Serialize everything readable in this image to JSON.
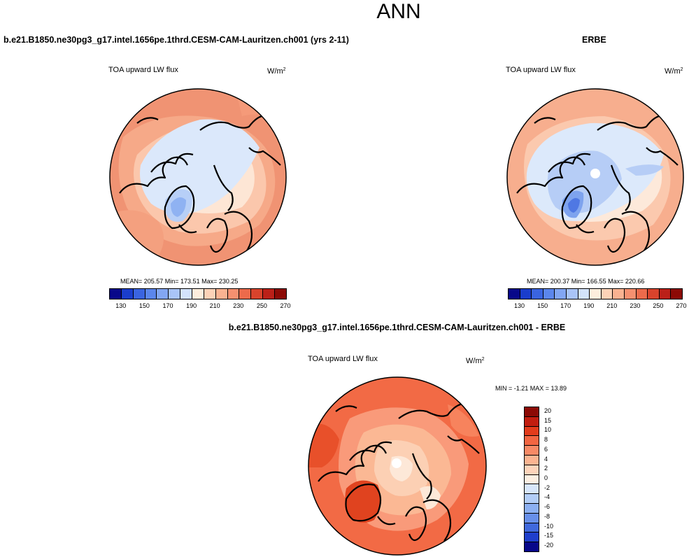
{
  "title": "ANN",
  "panels": {
    "left": {
      "heading": "b.e21.B1850.ne30pg3_g17.intel.1656pe.1thrd.CESM-CAM-Lauritzen.ch001 (yrs 2-11)",
      "variable": "TOA upward LW flux",
      "unit_base": "W/m",
      "unit_exp": "2",
      "stats": "MEAN= 205.57  Min= 173.51  Max= 230.25"
    },
    "right": {
      "heading": "ERBE",
      "variable": "TOA upward LW flux",
      "unit_base": "W/m",
      "unit_exp": "2",
      "stats": "MEAN= 200.37  Min= 166.55  Max= 220.66"
    },
    "diff": {
      "heading": "b.e21.B1850.ne30pg3_g17.intel.1656pe.1thrd.CESM-CAM-Lauritzen.ch001 - ERBE",
      "variable": "TOA upward LW flux",
      "unit_base": "W/m",
      "unit_exp": "2",
      "stats": "MIN =  -1.21 MAX =  13.89"
    }
  },
  "colorbar_abs": {
    "labels": [
      "130",
      "150",
      "170",
      "190",
      "210",
      "230",
      "250",
      "270"
    ],
    "colors": [
      "#08088a",
      "#1a3dcc",
      "#3a64e0",
      "#5b86ec",
      "#82a6f2",
      "#a9c4f7",
      "#d3e3fb",
      "#fdeedd",
      "#fcd2b7",
      "#f9b291",
      "#f59070",
      "#ec6a4b",
      "#d9432c",
      "#bb2018",
      "#8c0a05"
    ]
  },
  "colorbar_diff": {
    "labels": [
      "20",
      "15",
      "10",
      "8",
      "6",
      "4",
      "2",
      "0",
      "-2",
      "-4",
      "-6",
      "-8",
      "-10",
      "-15",
      "-20"
    ],
    "colors": [
      "#8c0a05",
      "#c21e10",
      "#e33c1c",
      "#f26642",
      "#f78a66",
      "#fbb491",
      "#fdd4bb",
      "#fcefe2",
      "#d7e6fb",
      "#b2cdf7",
      "#8cb0f2",
      "#6890ea",
      "#4069dd",
      "#1f3fcc",
      "#08088a"
    ]
  }
}
